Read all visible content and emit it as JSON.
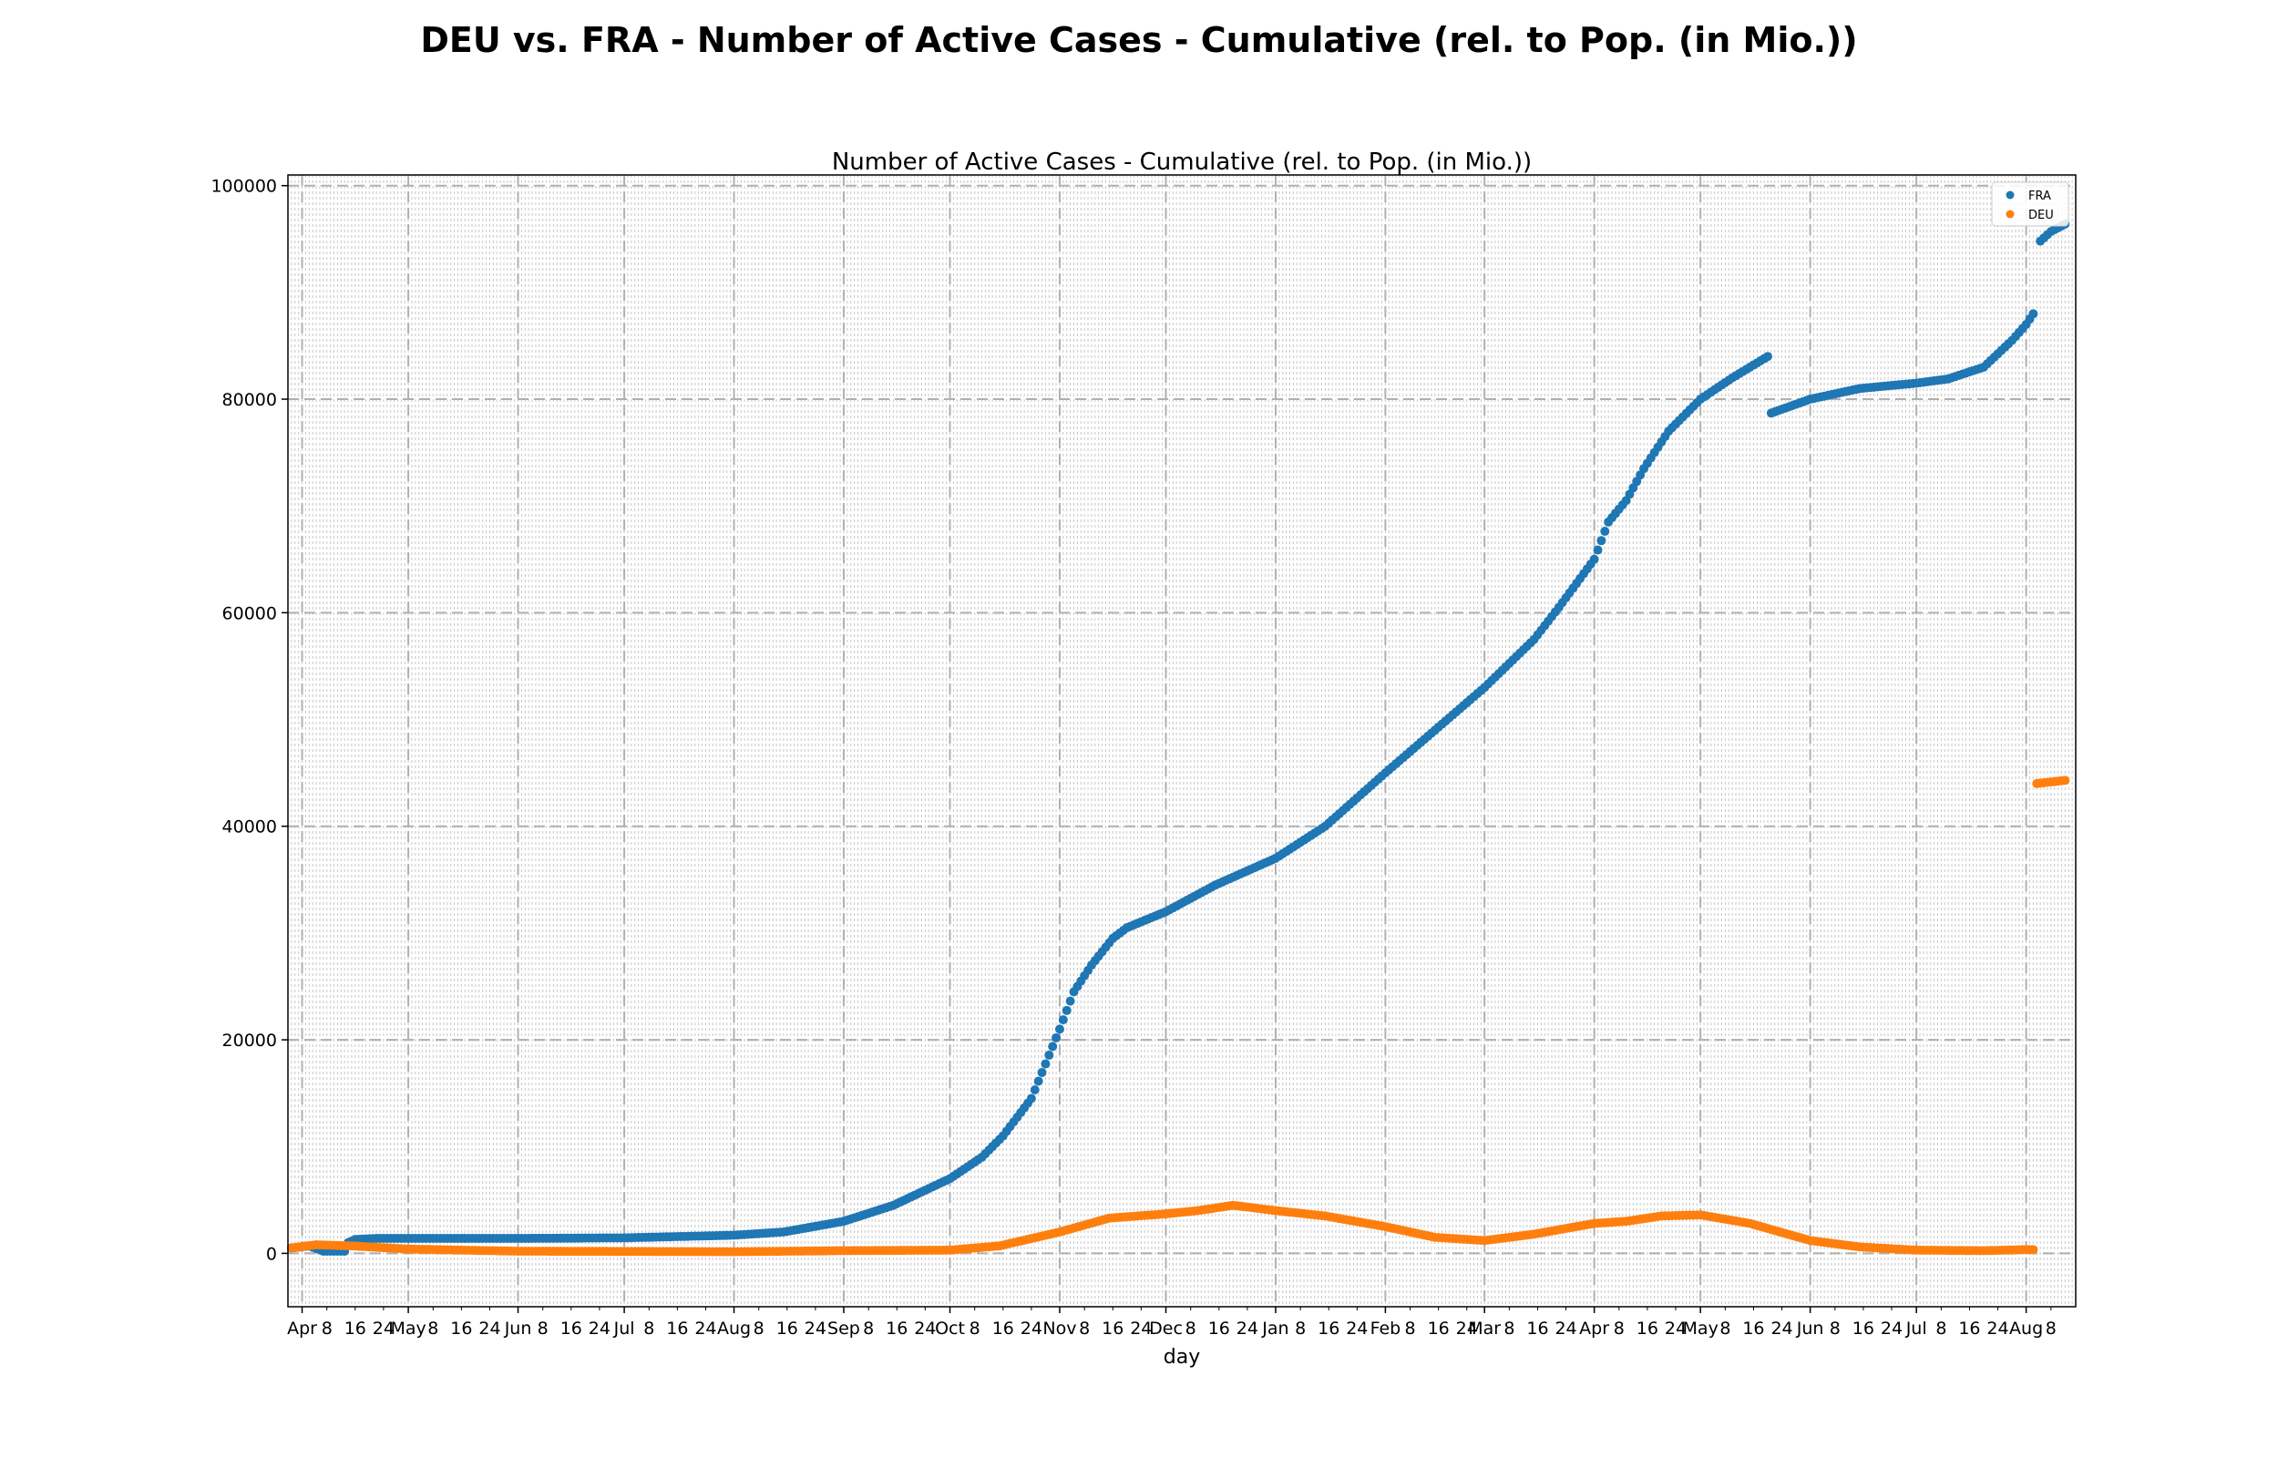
{
  "figure_title": "DEU vs. FRA - Number of Active Cases - Cumulative (rel. to Pop. (in Mio.))",
  "chart_data": {
    "type": "scatter",
    "title": "Number of Active Cases - Cumulative (rel. to Pop. (in Mio.))",
    "xlabel": "day",
    "ylabel": "",
    "x_range": [
      "2020-03-28",
      "2021-08-15"
    ],
    "ylim": [
      -5000,
      101000
    ],
    "y_ticks": [
      0,
      20000,
      40000,
      60000,
      80000,
      100000
    ],
    "x_major_ticks": [
      {
        "date": "2020-04-01",
        "label": "Apr"
      },
      {
        "date": "2020-05-01",
        "label": "May"
      },
      {
        "date": "2020-06-01",
        "label": "Jun"
      },
      {
        "date": "2020-07-01",
        "label": "Jul"
      },
      {
        "date": "2020-08-01",
        "label": "Aug"
      },
      {
        "date": "2020-09-01",
        "label": "Sep"
      },
      {
        "date": "2020-10-01",
        "label": "Oct"
      },
      {
        "date": "2020-11-01",
        "label": "Nov"
      },
      {
        "date": "2020-12-01",
        "label": "Dec"
      },
      {
        "date": "2021-01-01",
        "label": "Jan"
      },
      {
        "date": "2021-02-01",
        "label": "Feb"
      },
      {
        "date": "2021-03-01",
        "label": "Mar"
      },
      {
        "date": "2021-04-01",
        "label": "Apr"
      },
      {
        "date": "2021-05-01",
        "label": "May"
      },
      {
        "date": "2021-06-01",
        "label": "Jun"
      },
      {
        "date": "2021-07-01",
        "label": "Jul"
      },
      {
        "date": "2021-08-01",
        "label": "Aug"
      }
    ],
    "x_minor_days": [
      8,
      16,
      24
    ],
    "grid": true,
    "legend_position": "top-right",
    "series": [
      {
        "name": "FRA",
        "color": "#1f77b4",
        "segments": [
          [
            [
              "2020-03-29",
              500
            ],
            [
              "2020-04-03",
              700
            ],
            [
              "2020-04-07",
              200
            ],
            [
              "2020-04-13",
              200
            ],
            [
              "2020-04-14",
              1000
            ],
            [
              "2020-04-16",
              1300
            ],
            [
              "2020-04-22",
              1400
            ],
            [
              "2020-05-01",
              1400
            ],
            [
              "2020-06-01",
              1400
            ],
            [
              "2020-07-01",
              1450
            ],
            [
              "2020-08-01",
              1700
            ],
            [
              "2020-08-15",
              2000
            ],
            [
              "2020-09-01",
              3000
            ],
            [
              "2020-09-15",
              4500
            ],
            [
              "2020-10-01",
              7000
            ],
            [
              "2020-10-10",
              9000
            ],
            [
              "2020-10-16",
              11000
            ],
            [
              "2020-10-24",
              14500
            ],
            [
              "2020-11-01",
              21000
            ],
            [
              "2020-11-05",
              24500
            ],
            [
              "2020-11-10",
              27000
            ],
            [
              "2020-11-16",
              29500
            ],
            [
              "2020-11-20",
              30500
            ],
            [
              "2020-12-01",
              32000
            ],
            [
              "2020-12-15",
              34500
            ],
            [
              "2021-01-01",
              37000
            ],
            [
              "2021-01-15",
              40000
            ],
            [
              "2021-02-01",
              45000
            ],
            [
              "2021-02-15",
              49000
            ],
            [
              "2021-03-01",
              53000
            ],
            [
              "2021-03-15",
              57500
            ],
            [
              "2021-03-22",
              60500
            ],
            [
              "2021-04-01",
              65000
            ],
            [
              "2021-04-05",
              68500
            ],
            [
              "2021-04-10",
              70500
            ],
            [
              "2021-04-15",
              73500
            ],
            [
              "2021-04-22",
              77000
            ],
            [
              "2021-05-01",
              80000
            ],
            [
              "2021-05-10",
              82000
            ],
            [
              "2021-05-20",
              84000
            ]
          ],
          [
            [
              "2021-05-21",
              78700
            ],
            [
              "2021-06-01",
              80000
            ],
            [
              "2021-06-15",
              81000
            ],
            [
              "2021-07-01",
              81500
            ],
            [
              "2021-07-10",
              81900
            ],
            [
              "2021-07-20",
              83000
            ],
            [
              "2021-07-28",
              85500
            ],
            [
              "2021-08-01",
              87000
            ],
            [
              "2021-08-03",
              88000
            ]
          ],
          [
            [
              "2021-08-05",
              94800
            ],
            [
              "2021-08-08",
              95700
            ],
            [
              "2021-08-12",
              96400
            ]
          ]
        ]
      },
      {
        "name": "DEU",
        "color": "#ff7f0e",
        "segments": [
          [
            [
              "2020-03-29",
              500
            ],
            [
              "2020-04-05",
              800
            ],
            [
              "2020-04-15",
              700
            ],
            [
              "2020-05-01",
              400
            ],
            [
              "2020-06-01",
              200
            ],
            [
              "2020-08-01",
              150
            ],
            [
              "2020-09-01",
              250
            ],
            [
              "2020-10-01",
              300
            ],
            [
              "2020-10-15",
              700
            ],
            [
              "2020-11-01",
              2000
            ],
            [
              "2020-11-15",
              3300
            ],
            [
              "2020-12-01",
              3700
            ],
            [
              "2020-12-10",
              4000
            ],
            [
              "2020-12-20",
              4500
            ],
            [
              "2021-01-01",
              4000
            ],
            [
              "2021-01-15",
              3500
            ],
            [
              "2021-02-01",
              2500
            ],
            [
              "2021-02-15",
              1500
            ],
            [
              "2021-03-01",
              1200
            ],
            [
              "2021-03-15",
              1800
            ],
            [
              "2021-04-01",
              2800
            ],
            [
              "2021-04-10",
              3000
            ],
            [
              "2021-04-20",
              3500
            ],
            [
              "2021-05-01",
              3600
            ],
            [
              "2021-05-15",
              2800
            ],
            [
              "2021-06-01",
              1200
            ],
            [
              "2021-06-15",
              600
            ],
            [
              "2021-07-01",
              300
            ],
            [
              "2021-07-20",
              250
            ],
            [
              "2021-08-01",
              350
            ],
            [
              "2021-08-03",
              350
            ]
          ],
          [
            [
              "2021-08-04",
              44000
            ],
            [
              "2021-08-12",
              44300
            ]
          ]
        ]
      }
    ]
  }
}
